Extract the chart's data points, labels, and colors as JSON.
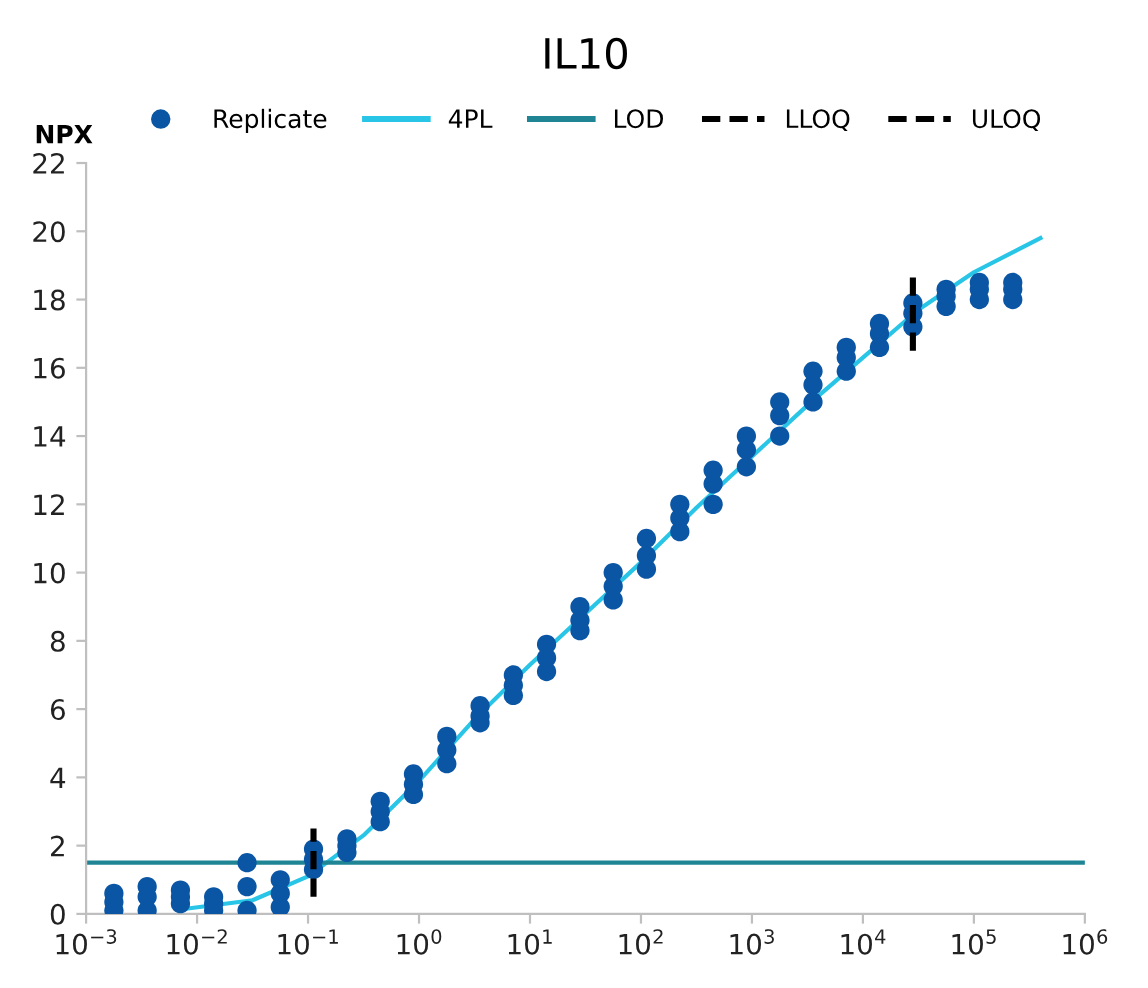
{
  "chart_data": {
    "type": "scatter",
    "title": "IL10",
    "ylabel": "NPX",
    "xlim": [
      0.001,
      1000000
    ],
    "ylim": [
      0,
      22
    ],
    "xticks": [
      {
        "value": 0.001,
        "label": "10$^{−3}$"
      },
      {
        "value": 0.01,
        "label": "10$^{−2}$"
      },
      {
        "value": 0.1,
        "label": "10$^{−1}$"
      },
      {
        "value": 1,
        "label": "10$^{0}$"
      },
      {
        "value": 10,
        "label": "10$^{1}$"
      },
      {
        "value": 100,
        "label": "10$^{2}$"
      },
      {
        "value": 1000,
        "label": "10$^{3}$"
      },
      {
        "value": 10000,
        "label": "10$^{4}$"
      },
      {
        "value": 100000,
        "label": "10$^{5}$"
      },
      {
        "value": 1000000,
        "label": "10$^{6}$"
      }
    ],
    "yticks": [
      0,
      2,
      4,
      6,
      8,
      10,
      12,
      14,
      16,
      18,
      20,
      22
    ],
    "log": "x",
    "grid": false,
    "legend": "top",
    "series": [
      {
        "name": "Replicate",
        "color": "#0b56a4",
        "marker": "circle",
        "x": [
          0.00178,
          0.00178,
          0.00178,
          0.00355,
          0.00355,
          0.00355,
          0.00708,
          0.00708,
          0.00708,
          0.0141,
          0.0141,
          0.0141,
          0.0282,
          0.0282,
          0.0282,
          0.0562,
          0.0562,
          0.0562,
          0.112,
          0.112,
          0.112,
          0.224,
          0.224,
          0.224,
          0.447,
          0.447,
          0.447,
          0.891,
          0.891,
          0.891,
          1.78,
          1.78,
          1.78,
          3.55,
          3.55,
          3.55,
          7.08,
          7.08,
          7.08,
          14.1,
          14.1,
          14.1,
          28.2,
          28.2,
          28.2,
          56.2,
          56.2,
          56.2,
          112,
          112,
          112,
          224,
          224,
          224,
          447,
          447,
          447,
          891,
          891,
          891,
          1780,
          1780,
          1780,
          3550,
          3550,
          3550,
          7080,
          7080,
          7080,
          14100,
          14100,
          14100,
          28200,
          28200,
          28200,
          56200,
          56200,
          56200,
          112000,
          112000,
          112000,
          224000,
          224000,
          224000
        ],
        "values": [
          0.1,
          0.35,
          0.6,
          0.1,
          0.5,
          0.8,
          0.3,
          0.5,
          0.7,
          0.1,
          0.3,
          0.5,
          0.1,
          0.8,
          1.5,
          0.2,
          0.6,
          1.0,
          1.3,
          1.6,
          1.9,
          1.8,
          2.0,
          2.2,
          2.7,
          3.0,
          3.3,
          3.5,
          3.8,
          4.1,
          4.4,
          4.8,
          5.2,
          5.6,
          5.8,
          6.1,
          6.4,
          6.7,
          7.0,
          7.1,
          7.5,
          7.9,
          8.3,
          8.6,
          9.0,
          9.2,
          9.6,
          10.0,
          10.1,
          10.5,
          11.0,
          11.2,
          11.6,
          12.0,
          12.0,
          12.6,
          13.0,
          13.1,
          13.6,
          14.0,
          14.0,
          14.6,
          15.0,
          15.0,
          15.5,
          15.9,
          15.9,
          16.3,
          16.6,
          16.6,
          17.0,
          17.3,
          17.2,
          17.6,
          17.9,
          17.8,
          18.1,
          18.3,
          18.0,
          18.3,
          18.5,
          18.0,
          18.3,
          18.5
        ]
      },
      {
        "name": "4PL",
        "type": "line",
        "color": "#29c5e6",
        "line_style": "solid",
        "x": [
          0.00794,
          0.0316,
          0.1,
          0.316,
          1,
          3.16,
          10,
          31.6,
          100,
          316,
          1000,
          3160,
          10000,
          31600,
          100000,
          398000
        ],
        "values": [
          0.15,
          0.4,
          1.1,
          2.3,
          3.9,
          5.7,
          7.3,
          8.8,
          10.3,
          11.9,
          13.4,
          14.9,
          16.3,
          17.7,
          18.8,
          19.8
        ]
      },
      {
        "name": "LOD",
        "type": "line",
        "color": "#1f8595",
        "line_style": "solid",
        "x": [
          0.001,
          1000000
        ],
        "values": [
          1.5,
          1.5
        ]
      },
      {
        "name": "LLOQ",
        "type": "line",
        "color": "#000000",
        "line_style": "dashed",
        "x": [
          0.112,
          0.112
        ],
        "values": [
          0.5,
          2.5
        ]
      },
      {
        "name": "ULOQ",
        "type": "line",
        "color": "#000000",
        "line_style": "dashed",
        "x": [
          28200,
          28200
        ],
        "values": [
          16.5,
          18.8
        ]
      }
    ]
  }
}
